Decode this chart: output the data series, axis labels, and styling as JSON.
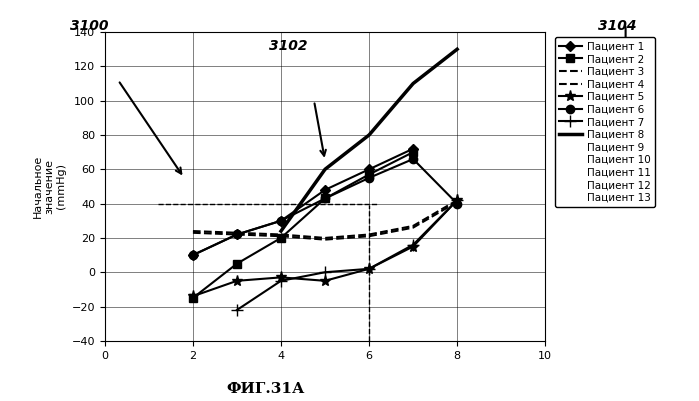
{
  "title_fig": "ФИГ.31А",
  "ylabel": "Начальное\nзначение\n(mmHg)",
  "xlabel": "",
  "xlim": [
    0,
    10
  ],
  "ylim": [
    -40,
    140
  ],
  "xticks": [
    0,
    2,
    4,
    6,
    8,
    10
  ],
  "yticks": [
    -40,
    -20,
    0,
    20,
    40,
    60,
    80,
    100,
    120,
    140
  ],
  "label3100": "3100",
  "label3102": "3102",
  "label3104": "3104",
  "series": [
    {
      "label": "Пациент 1",
      "x": [
        2,
        3,
        4,
        5,
        6,
        7
      ],
      "y": [
        10,
        22,
        30,
        48,
        60,
        72
      ],
      "marker": "D",
      "markersize": 5,
      "linestyle": "-",
      "color": "black",
      "linewidth": 1.5
    },
    {
      "label": "Пациент 2",
      "x": [
        2,
        3,
        4,
        5,
        6,
        7
      ],
      "y": [
        -15,
        5,
        20,
        43,
        57,
        70
      ],
      "marker": "s",
      "markersize": 6,
      "linestyle": "-",
      "color": "black",
      "linewidth": 1.5
    },
    {
      "label": "Пациент 3",
      "x": [
        2,
        4,
        5,
        6,
        7,
        8
      ],
      "y": [
        24,
        22,
        20,
        22,
        27,
        42
      ],
      "marker": "None",
      "markersize": 5,
      "linestyle": "--",
      "color": "black",
      "linewidth": 1.5
    },
    {
      "label": "Пациент 4",
      "x": [
        2,
        4,
        5,
        6,
        7,
        8
      ],
      "y": [
        23,
        21,
        19,
        21,
        26,
        41
      ],
      "marker": "None",
      "markersize": 5,
      "linestyle": "--",
      "color": "black",
      "linewidth": 1.5
    },
    {
      "label": "Пациент 5",
      "x": [
        2,
        3,
        4,
        5,
        6,
        7,
        8
      ],
      "y": [
        -14,
        -5,
        -3,
        -5,
        2,
        15,
        42
      ],
      "marker": "*",
      "markersize": 8,
      "linestyle": "-",
      "color": "black",
      "linewidth": 1.5
    },
    {
      "label": "Пациент 6",
      "x": [
        2,
        3,
        4,
        5,
        6,
        7,
        8
      ],
      "y": [
        10,
        22,
        30,
        43,
        55,
        66,
        40
      ],
      "marker": "o",
      "markersize": 6,
      "linestyle": "-",
      "color": "black",
      "linewidth": 1.5
    },
    {
      "label": "Пациент 7",
      "x": [
        3,
        4,
        5,
        6,
        7,
        8
      ],
      "y": [
        -22,
        -5,
        0,
        2,
        16,
        42
      ],
      "marker": "+",
      "markersize": 8,
      "linestyle": "-",
      "color": "black",
      "linewidth": 1.5
    },
    {
      "label": "Пациент 8",
      "x": [
        4,
        5,
        6,
        7,
        8
      ],
      "y": [
        24,
        60,
        80,
        110,
        130
      ],
      "marker": "None",
      "markersize": 5,
      "linestyle": "-",
      "color": "black",
      "linewidth": 2.5
    },
    {
      "label": "Пациент 9",
      "x": [],
      "y": [],
      "marker": "None",
      "markersize": 5,
      "linestyle": "-",
      "color": "black",
      "linewidth": 1.5
    },
    {
      "label": "Пациент 10",
      "x": [],
      "y": [],
      "marker": "None",
      "markersize": 5,
      "linestyle": "-",
      "color": "black",
      "linewidth": 1.5
    },
    {
      "label": "Пациент 11",
      "x": [],
      "y": [],
      "marker": "None",
      "markersize": 5,
      "linestyle": "-",
      "color": "black",
      "linewidth": 1.5
    },
    {
      "label": "Пациент 12",
      "x": [],
      "y": [],
      "marker": "None",
      "markersize": 5,
      "linestyle": "-",
      "color": "black",
      "linewidth": 1.5
    },
    {
      "label": "Пациент 13",
      "x": [],
      "y": [],
      "marker": "None",
      "markersize": 5,
      "linestyle": "-",
      "color": "black",
      "linewidth": 1.5
    }
  ],
  "dashed_hline_y": 40,
  "dashed_vline_x": 6,
  "legend_entries": [
    {
      "label": "Пациент 1",
      "marker": "D",
      "linestyle": "-",
      "markersize": 5,
      "linewidth": 1.5
    },
    {
      "label": "Пациент 2",
      "marker": "s",
      "linestyle": "-",
      "markersize": 6,
      "linewidth": 1.5
    },
    {
      "label": "Пациент 3",
      "marker": null,
      "linestyle": "--",
      "markersize": 0,
      "linewidth": 1.5
    },
    {
      "label": "Пациент 4",
      "marker": null,
      "linestyle": "--",
      "markersize": 0,
      "linewidth": 1.5
    },
    {
      "label": "Пациент 5",
      "marker": "*",
      "linestyle": "-",
      "markersize": 8,
      "linewidth": 1.5
    },
    {
      "label": "Пациент 6",
      "marker": "o",
      "linestyle": "-",
      "markersize": 6,
      "linewidth": 1.5
    },
    {
      "label": "Пациент 7",
      "marker": "+",
      "linestyle": "-",
      "markersize": 8,
      "linewidth": 1.5
    },
    {
      "label": "Пациент 8",
      "marker": null,
      "linestyle": "-",
      "markersize": 0,
      "linewidth": 2.5
    },
    {
      "label": "Пациент 9",
      "marker": null,
      "linestyle": "none",
      "markersize": 0,
      "linewidth": 1.5
    },
    {
      "label": "Пациент 10",
      "marker": null,
      "linestyle": "none",
      "markersize": 0,
      "linewidth": 1.5
    },
    {
      "label": "Пациент 11",
      "marker": null,
      "linestyle": "none",
      "markersize": 0,
      "linewidth": 1.5
    },
    {
      "label": "Пациент 12",
      "marker": null,
      "linestyle": "none",
      "markersize": 0,
      "linewidth": 1.5
    },
    {
      "label": "Пациент 13",
      "marker": null,
      "linestyle": "none",
      "markersize": 0,
      "linewidth": 1.5
    }
  ]
}
